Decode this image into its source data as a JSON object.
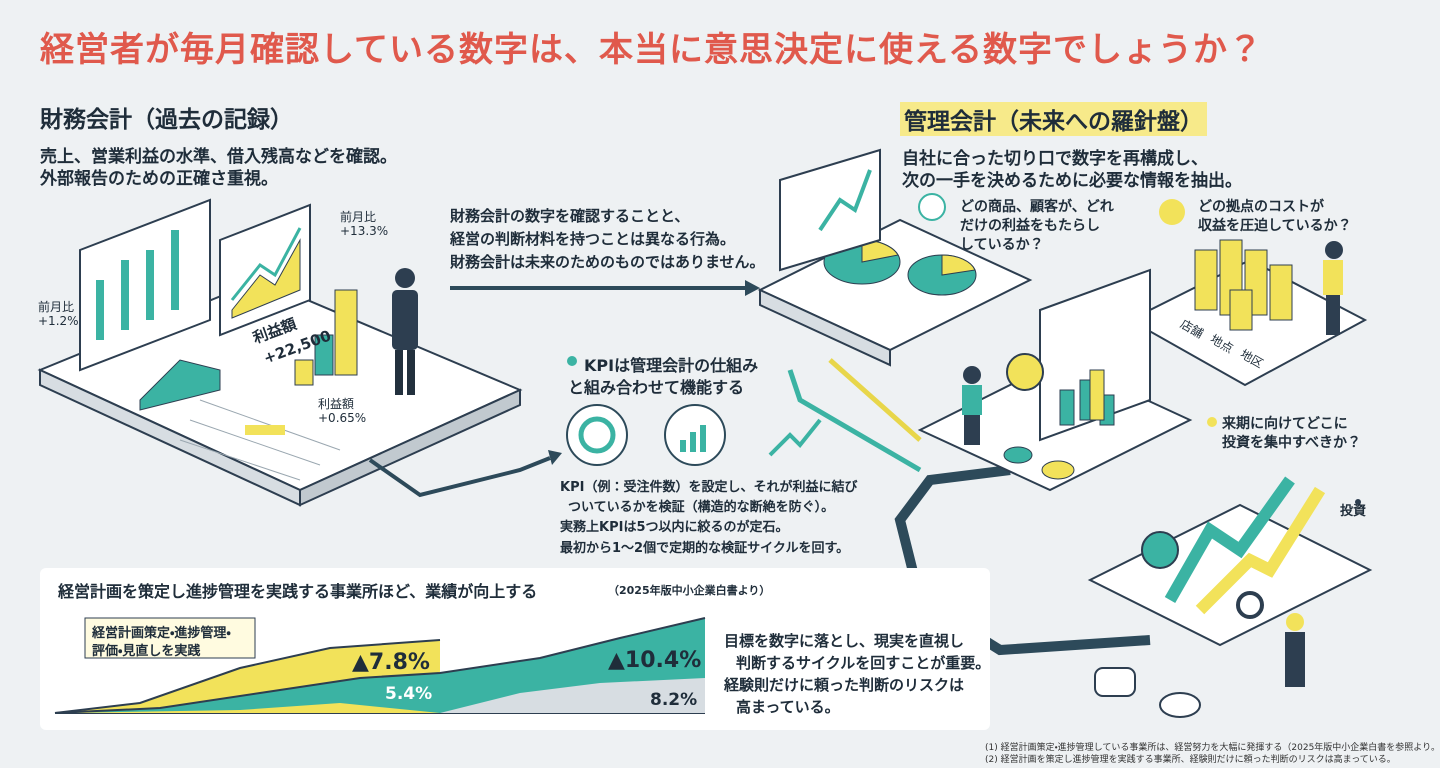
{
  "header": {
    "title": "経営者が毎月確認している数字は、本当に意思決定に使える数字でしょうか？"
  },
  "financial": {
    "heading": "財務会計（過去の記録）",
    "description": [
      "売上、営業利益の水準、借入残高などを確認。",
      "外部報告のための正確さ重視。"
    ],
    "labels": [
      [
        "前月比",
        "+13.3%"
      ],
      [
        "前月比",
        "+1.2%"
      ],
      [
        "利益額",
        "+22,500"
      ],
      [
        "利益額",
        "+0.65%"
      ]
    ]
  },
  "bridge": {
    "text": [
      "財務会計の数字を確認することと、",
      "経営の判断材料を持つことは異なる行為。",
      "財務会計は未来のためのものではありません。"
    ],
    "kpi_heading": [
      "KPIは管理会計の仕組み",
      "と組み合わせて機能する"
    ],
    "bullets": [
      [
        "KPI（例：受注件数）を設定し、それが利益に結び",
        "ついているかを検証（構造的な断絶を防ぐ）。"
      ],
      [
        "実務上KPIは5つ以内に絞るのが定石。"
      ],
      [
        "最初から1〜2個で定期的な検証サイクルを回す。"
      ]
    ]
  },
  "management": {
    "heading": "管理会計（未来への羅針盤）",
    "description": [
      "自社に合った切り口で数字を再構成し、",
      "次の一手を決めるために必要な情報を抽出。"
    ],
    "questions": [
      [
        "どの商品、顧客が、どれ",
        "だけの利益をもたらし",
        "しているか？"
      ],
      [
        "どの拠点のコストが",
        "収益を圧迫しているか？"
      ],
      [
        "来期に向けてどこに",
        "投資を集中すべきか？"
      ]
    ],
    "block_labels": [
      "店舗",
      "地点",
      "地区"
    ],
    "invest_label": "投資"
  },
  "bottom": {
    "title": "経営計画を策定し進捗管理を実践する事業所ほど、業績が向上する",
    "source": "（2025年版中小企業白書より）",
    "callout": [
      "経営計画策定・進捗管理・",
      "評価・見直しを実践"
    ],
    "figures": [
      "▲7.8%",
      "5.4%",
      "▲10.4%",
      "8.2%"
    ],
    "bullets": [
      [
        "目標を数字に落とし、現実を直視し",
        "判断するサイクルを回すことが重要。"
      ],
      [
        "経験則だけに頼った判断のリスクは",
        "高まっている。"
      ]
    ]
  },
  "footnotes": [
    "(1) 経営計画策定・進捗管理している事業所は、経営努力を大幅に発揮する（2025年版中小企業白書を参照より。",
    "(2) 経営計画を策定し進捗管理を実践する事業所、経験則だけに頼った判断のリスクは高まっている。"
  ]
}
